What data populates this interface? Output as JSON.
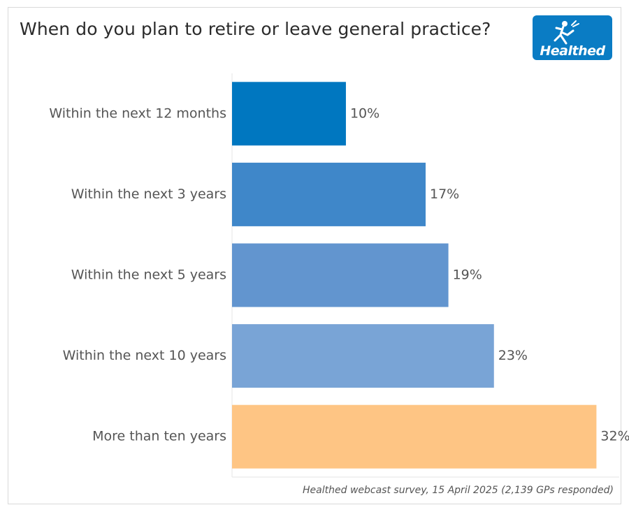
{
  "header": {
    "title": "When do you plan to retire or leave general practice?",
    "logo_text": "Healthed",
    "logo_icon": "mercury-figure-icon",
    "logo_color": "#0a7cc4"
  },
  "footer": {
    "source": "Healthed webcast survey, 15 April 2025 (2,139 GPs responded)"
  },
  "chart_data": {
    "type": "bar",
    "orientation": "horizontal",
    "title": "When do you plan to retire or leave general practice?",
    "categories": [
      "Within the next 12 months",
      "Within the next 3 years",
      "Within the next 5 years",
      "Within the next 10 years",
      "More than ten years"
    ],
    "values": [
      10,
      17,
      19,
      23,
      32
    ],
    "value_labels": [
      "10%",
      "17%",
      "19%",
      "23%",
      "32%"
    ],
    "colors": [
      "#0077c0",
      "#3f87c9",
      "#6295cf",
      "#79a4d6",
      "#fec584"
    ],
    "xlim": [
      0,
      34
    ],
    "grid": false,
    "legend": "none"
  }
}
